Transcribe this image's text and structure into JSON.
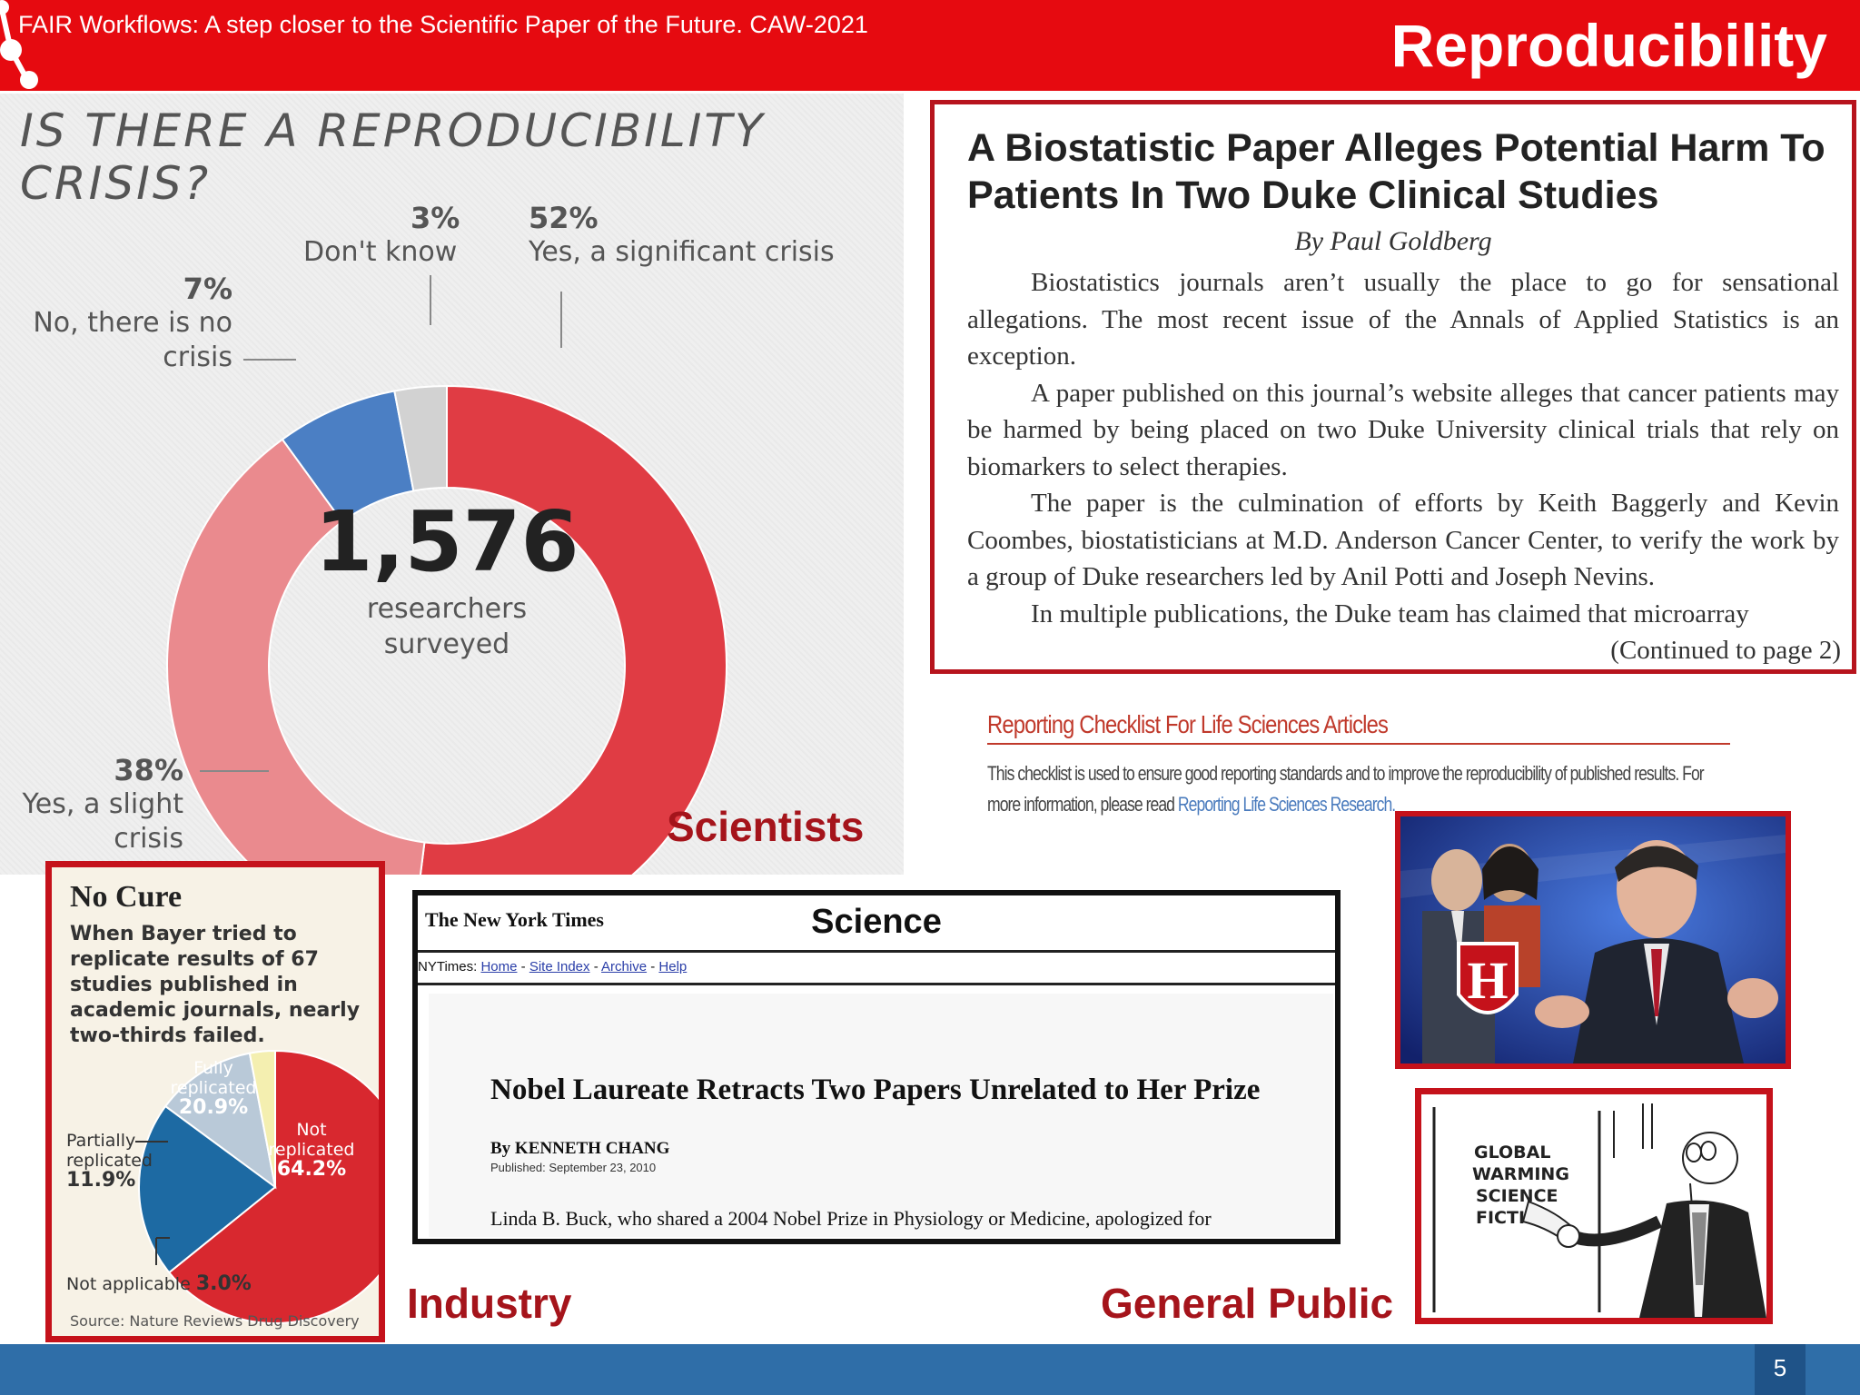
{
  "slide": {
    "title": "Reproducibility",
    "footer": "FAIR Workflows: A step closer to the Scientific Paper of the Future. CAW-2021",
    "page_number": "5"
  },
  "survey": {
    "title": "IS THERE A REPRODUCIBILITY CRISIS?",
    "center_value": "1,576",
    "center_label_1": "researchers",
    "center_label_2": "surveyed",
    "slices": [
      {
        "pct": "52%",
        "label": "Yes, a significant crisis",
        "value": 52,
        "color": "#e03c44"
      },
      {
        "pct": "38%",
        "label_1": "Yes, a slight",
        "label_2": "crisis",
        "value": 38,
        "color": "#ea8a8e"
      },
      {
        "pct": "7%",
        "label_1": "No, there is no",
        "label_2": "crisis",
        "value": 7,
        "color": "#4b7fc4"
      },
      {
        "pct": "3%",
        "label": "Don't know",
        "value": 3,
        "color": "#d2d2d2"
      }
    ]
  },
  "audience_labels": {
    "scientists": "Scientists",
    "industry": "Industry",
    "general_public": "General Public"
  },
  "article": {
    "headline": "A Biostatistic Paper Alleges Potential Harm To Patients In Two Duke Clinical Studies",
    "byline": "By Paul Goldberg",
    "paragraphs": [
      "Biostatistics journals aren’t usually the place to go for sensational allegations. The most recent issue of the Annals of Applied Statistics is an exception.",
      "A paper published on this journal’s website alleges that cancer patients may be harmed by being placed on two Duke University clinical trials that rely on biomarkers to select therapies.",
      "The paper is the culmination of efforts by Keith Baggerly and Kevin Coombes, biostatisticians at M.D. Anderson Cancer Center, to verify the work by a group of Duke researchers led by Anil Potti and Joseph Nevins.",
      "In multiple publications, the Duke team has claimed that microarray"
    ],
    "continued": "(Continued to page 2)"
  },
  "checklist": {
    "title": "Reporting Checklist For Life Sciences Articles",
    "text": "This checklist is used to ensure good reporting standards and to improve the reproducibility of published results. For more information, please read ",
    "link": "Reporting Life Sciences Research."
  },
  "no_cure": {
    "title": "No Cure",
    "description": "When Bayer tried to replicate results of 67 studies published in academic journals, nearly two-thirds failed.",
    "slices": [
      {
        "label_1": "Not",
        "label_2": "replicated",
        "pct": "64.2%",
        "value": 64.2,
        "color": "#d8282f"
      },
      {
        "label_1": "Fully",
        "label_2": "replicated",
        "pct": "20.9%",
        "value": 20.9,
        "color": "#1d6aa3"
      },
      {
        "label_1": "Partially",
        "label_2": "replicated",
        "pct": "11.9%",
        "value": 11.9,
        "color": "#b9c9d8"
      },
      {
        "label": "Not applicable",
        "pct": "3.0%",
        "value": 3.0,
        "color": "#f4efb0"
      }
    ],
    "source": "Source: Nature Reviews Drug Discovery"
  },
  "nyt": {
    "masthead": "The New York Times",
    "section": "Science",
    "nav_prefix": "NYTimes: ",
    "nav": [
      "Home",
      "Site Index",
      "Archive",
      "Help"
    ],
    "headline": "Nobel Laureate Retracts Two Papers Unrelated to Her Prize",
    "byline": "By KENNETH CHANG",
    "published": "Published: September 23, 2010",
    "lead": "Linda B. Buck, who shared a 2004 Nobel Prize in Physiology or Medicine, apologized for"
  },
  "photo": {
    "shield_letter": "H"
  },
  "cartoon": {
    "sign_lines": [
      "GLOBAL",
      "WARMING",
      "SCIENCE",
      "FICTIO"
    ]
  }
}
